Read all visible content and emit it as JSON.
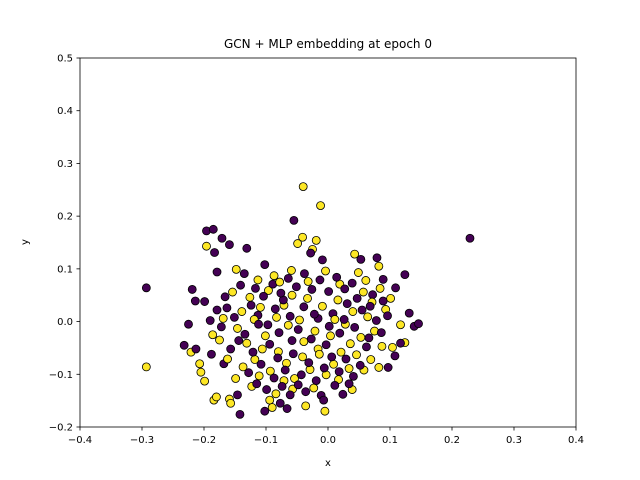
{
  "chart_data": {
    "type": "scatter",
    "title": "GCN + MLP embedding at epoch 0",
    "xlabel": "x",
    "ylabel": "y",
    "xlim": [
      -0.4,
      0.4
    ],
    "ylim": [
      -0.2,
      0.5
    ],
    "xticks": [
      "-0.4",
      "-0.3",
      "-0.2",
      "-0.1",
      "0.0",
      "0.1",
      "0.2",
      "0.3",
      "0.4"
    ],
    "yticks": [
      "-0.2",
      "-0.1",
      "0.0",
      "0.1",
      "0.2",
      "0.3",
      "0.4",
      "0.5"
    ],
    "grid": false,
    "colors": {
      "class_0": "#440154",
      "class_1": "#fde725",
      "edge": "#000000"
    },
    "series": [
      {
        "color": "#440154",
        "points": [
          [
            -0.293,
            0.064
          ],
          [
            0.229,
            0.158
          ],
          [
            0.124,
            0.089
          ],
          [
            -0.055,
            0.192
          ],
          [
            -0.196,
            0.172
          ],
          [
            -0.185,
            0.175
          ],
          [
            -0.171,
            0.158
          ],
          [
            -0.159,
            0.146
          ],
          [
            -0.131,
            0.139
          ],
          [
            -0.183,
            0.131
          ],
          [
            -0.179,
            0.094
          ],
          [
            -0.102,
            0.108
          ],
          [
            -0.028,
            0.13
          ],
          [
            -0.009,
            0.117
          ],
          [
            0.053,
            0.118
          ],
          [
            0.079,
            0.121
          ],
          [
            -0.219,
            0.061
          ],
          [
            -0.214,
            0.039
          ],
          [
            -0.199,
            0.038
          ],
          [
            -0.179,
            0.022
          ],
          [
            -0.163,
            0.026
          ],
          [
            -0.19,
            0.002
          ],
          [
            -0.225,
            -0.005
          ],
          [
            -0.232,
            -0.045
          ],
          [
            -0.213,
            -0.052
          ],
          [
            -0.188,
            -0.062
          ],
          [
            -0.168,
            -0.08
          ],
          [
            -0.146,
            -0.139
          ],
          [
            -0.142,
            -0.176
          ],
          [
            -0.102,
            -0.17
          ],
          [
            -0.077,
            -0.155
          ],
          [
            -0.066,
            -0.165
          ],
          [
            -0.011,
            -0.14
          ],
          [
            -0.007,
            -0.149
          ],
          [
            0.024,
            -0.138
          ],
          [
            0.108,
            -0.065
          ],
          [
            0.117,
            -0.041
          ],
          [
            0.139,
            -0.009
          ],
          [
            0.146,
            -0.004
          ],
          [
            0.131,
            0.016
          ],
          [
            0.097,
            -0.087
          ],
          [
            0.109,
            0.064
          ],
          [
            0.089,
            0.039
          ],
          [
            0.072,
            0.051
          ],
          [
            0.089,
            0.08
          ],
          [
            -0.124,
            0.031
          ],
          [
            -0.113,
            0.012
          ],
          [
            -0.097,
            -0.006
          ],
          [
            -0.085,
            0.024
          ],
          [
            -0.072,
            0.041
          ],
          [
            -0.061,
            0.01
          ],
          [
            -0.048,
            -0.015
          ],
          [
            -0.039,
            0.028
          ],
          [
            -0.027,
            -0.033
          ],
          [
            -0.016,
            0.006
          ],
          [
            -0.003,
            -0.044
          ],
          [
            0.008,
            0.015
          ],
          [
            0.019,
            -0.022
          ],
          [
            0.031,
            0.034
          ],
          [
            0.043,
            -0.011
          ],
          [
            0.055,
            0.022
          ],
          [
            0.062,
            -0.048
          ],
          [
            -0.134,
            -0.024
          ],
          [
            -0.121,
            -0.058
          ],
          [
            -0.108,
            -0.081
          ],
          [
            -0.094,
            -0.043
          ],
          [
            -0.081,
            -0.069
          ],
          [
            -0.069,
            -0.092
          ],
          [
            -0.056,
            -0.061
          ],
          [
            -0.043,
            -0.101
          ],
          [
            -0.031,
            -0.078
          ],
          [
            -0.019,
            -0.112
          ],
          [
            -0.006,
            -0.088
          ],
          [
            0.006,
            -0.067
          ],
          [
            0.018,
            -0.095
          ],
          [
            0.029,
            -0.071
          ],
          [
            0.041,
            -0.104
          ],
          [
            -0.151,
            0.008
          ],
          [
            -0.144,
            -0.036
          ],
          [
            -0.157,
            -0.052
          ],
          [
            -0.117,
            0.063
          ],
          [
            -0.104,
            0.048
          ],
          [
            -0.089,
            0.071
          ],
          [
            -0.076,
            0.054
          ],
          [
            -0.064,
            0.082
          ],
          [
            -0.051,
            0.066
          ],
          [
            -0.038,
            0.091
          ],
          [
            -0.026,
            0.061
          ],
          [
            -0.013,
            0.079
          ],
          [
            0.001,
            0.057
          ],
          [
            0.014,
            0.084
          ],
          [
            0.027,
            0.062
          ],
          [
            0.039,
            0.073
          ],
          [
            -0.128,
            -0.097
          ],
          [
            -0.115,
            -0.118
          ],
          [
            -0.099,
            -0.129
          ],
          [
            -0.087,
            -0.107
          ],
          [
            -0.074,
            -0.123
          ],
          [
            -0.061,
            -0.139
          ],
          [
            -0.048,
            -0.12
          ],
          [
            -0.036,
            -0.133
          ],
          [
            0.011,
            -0.121
          ],
          [
            0.034,
            -0.118
          ],
          [
            0.052,
            -0.083
          ],
          [
            0.066,
            -0.031
          ],
          [
            0.078,
            0.002
          ],
          [
            0.086,
            -0.021
          ],
          [
            0.096,
            0.011
          ],
          [
            0.068,
            0.029
          ],
          [
            -0.172,
            -0.01
          ],
          [
            -0.166,
            0.047
          ],
          [
            -0.141,
            0.069
          ],
          [
            -0.135,
            0.091
          ],
          [
            -0.112,
            -0.005
          ],
          [
            -0.079,
            -0.021
          ],
          [
            -0.058,
            -0.036
          ],
          [
            -0.022,
            0.014
          ],
          [
            0.002,
            -0.009
          ],
          [
            0.026,
            0.004
          ],
          [
            0.047,
            0.044
          ]
        ]
      },
      {
        "color": "#fde725",
        "points": [
          [
            -0.04,
            0.256
          ],
          [
            -0.012,
            0.22
          ],
          [
            -0.041,
            0.16
          ],
          [
            -0.019,
            0.154
          ],
          [
            -0.025,
            0.137
          ],
          [
            -0.049,
            0.148
          ],
          [
            -0.196,
            0.143
          ],
          [
            -0.293,
            -0.086
          ],
          [
            0.043,
            0.128
          ],
          [
            0.082,
            0.105
          ],
          [
            -0.148,
            0.099
          ],
          [
            -0.205,
            -0.096
          ],
          [
            -0.199,
            -0.113
          ],
          [
            -0.184,
            -0.149
          ],
          [
            -0.18,
            -0.143
          ],
          [
            -0.159,
            -0.147
          ],
          [
            -0.157,
            -0.155
          ],
          [
            -0.221,
            -0.058
          ],
          [
            -0.207,
            -0.08
          ],
          [
            -0.094,
            -0.149
          ],
          [
            -0.09,
            -0.163
          ],
          [
            -0.036,
            -0.16
          ],
          [
            -0.005,
            -0.17
          ],
          [
            0.082,
            -0.087
          ],
          [
            0.104,
            -0.049
          ],
          [
            0.117,
            -0.006
          ],
          [
            0.124,
            -0.04
          ],
          [
            -0.139,
            0.019
          ],
          [
            -0.126,
            0.046
          ],
          [
            -0.109,
            0.027
          ],
          [
            -0.096,
            0.059
          ],
          [
            -0.083,
            0.008
          ],
          [
            -0.071,
            0.031
          ],
          [
            -0.058,
            0.05
          ],
          [
            -0.046,
            0.003
          ],
          [
            -0.033,
            0.044
          ],
          [
            -0.021,
            -0.018
          ],
          [
            -0.009,
            0.029
          ],
          [
            0.004,
            -0.027
          ],
          [
            0.016,
            0.041
          ],
          [
            0.028,
            -0.005
          ],
          [
            0.04,
            0.019
          ],
          [
            0.053,
            -0.03
          ],
          [
            0.064,
            0.009
          ],
          [
            0.075,
            -0.018
          ],
          [
            -0.131,
            -0.041
          ],
          [
            -0.118,
            -0.072
          ],
          [
            -0.106,
            -0.052
          ],
          [
            -0.093,
            -0.094
          ],
          [
            -0.08,
            -0.057
          ],
          [
            -0.067,
            -0.079
          ],
          [
            -0.054,
            -0.108
          ],
          [
            -0.041,
            -0.067
          ],
          [
            -0.029,
            -0.091
          ],
          [
            -0.016,
            -0.052
          ],
          [
            -0.003,
            -0.101
          ],
          [
            0.009,
            -0.081
          ],
          [
            0.021,
            -0.058
          ],
          [
            0.034,
            -0.089
          ],
          [
            0.046,
            -0.063
          ],
          [
            0.058,
            -0.092
          ],
          [
            -0.175,
            -0.035
          ],
          [
            -0.162,
            -0.071
          ],
          [
            -0.149,
            -0.108
          ],
          [
            -0.137,
            -0.086
          ],
          [
            -0.123,
            -0.123
          ],
          [
            -0.111,
            -0.103
          ],
          [
            -0.084,
            -0.137
          ],
          [
            -0.071,
            -0.112
          ],
          [
            -0.057,
            -0.128
          ],
          [
            -0.023,
            -0.126
          ],
          [
            0.017,
            -0.11
          ],
          [
            0.039,
            -0.129
          ],
          [
            0.069,
            -0.072
          ],
          [
            0.087,
            -0.047
          ],
          [
            0.093,
            0.023
          ],
          [
            0.101,
            0.044
          ],
          [
            0.084,
            0.063
          ],
          [
            0.061,
            0.078
          ],
          [
            0.049,
            0.093
          ],
          [
            0.019,
            0.071
          ],
          [
            -0.004,
            0.096
          ],
          [
            -0.032,
            0.076
          ],
          [
            -0.059,
            0.097
          ],
          [
            -0.087,
            0.087
          ],
          [
            -0.113,
            0.079
          ],
          [
            -0.154,
            0.056
          ],
          [
            -0.169,
            0.006
          ],
          [
            -0.186,
            -0.025
          ],
          [
            -0.146,
            -0.013
          ],
          [
            -0.119,
            0.004
          ],
          [
            -0.101,
            -0.027
          ],
          [
            -0.064,
            -0.007
          ],
          [
            -0.039,
            -0.038
          ],
          [
            -0.014,
            -0.062
          ],
          [
            0.011,
            0.004
          ],
          [
            0.036,
            -0.042
          ],
          [
            0.057,
            0.056
          ],
          [
            0.071,
            0.037
          ],
          [
            -0.078,
            0.075
          ]
        ]
      }
    ]
  }
}
